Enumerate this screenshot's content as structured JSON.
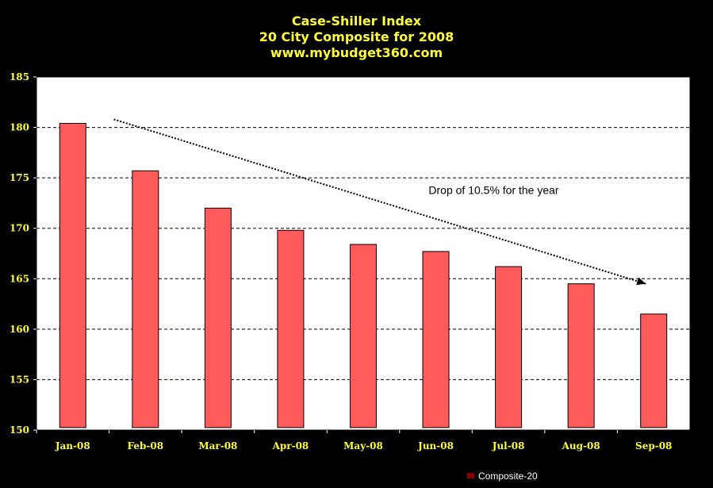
{
  "chart_data": {
    "type": "bar",
    "title": "Case-Shiller Index",
    "subtitle": "20 City Composite for 2008",
    "source": "www.mybudget360.com",
    "categories": [
      "Jan-08",
      "Feb-08",
      "Mar-08",
      "Apr-08",
      "May-08",
      "Jun-08",
      "Jul-08",
      "Aug-08",
      "Sep-08"
    ],
    "series": [
      {
        "name": "Composite-20",
        "values": [
          180.4,
          175.7,
          172.0,
          169.8,
          168.4,
          167.7,
          166.2,
          164.5,
          161.5
        ],
        "color": "#ff5b5b"
      }
    ],
    "ylim": [
      150,
      185
    ],
    "yticks": [
      150,
      155,
      160,
      165,
      170,
      175,
      180,
      185
    ],
    "grid": true,
    "legend_position": "bottom-right",
    "annotation": "Drop of 10.5% for the year",
    "colors": {
      "background": "#000000",
      "plot_area": "#ffffff",
      "text": "#ffff33",
      "bar_fill": "#ff5b5b",
      "legend_swatch": "#8b0000"
    }
  }
}
